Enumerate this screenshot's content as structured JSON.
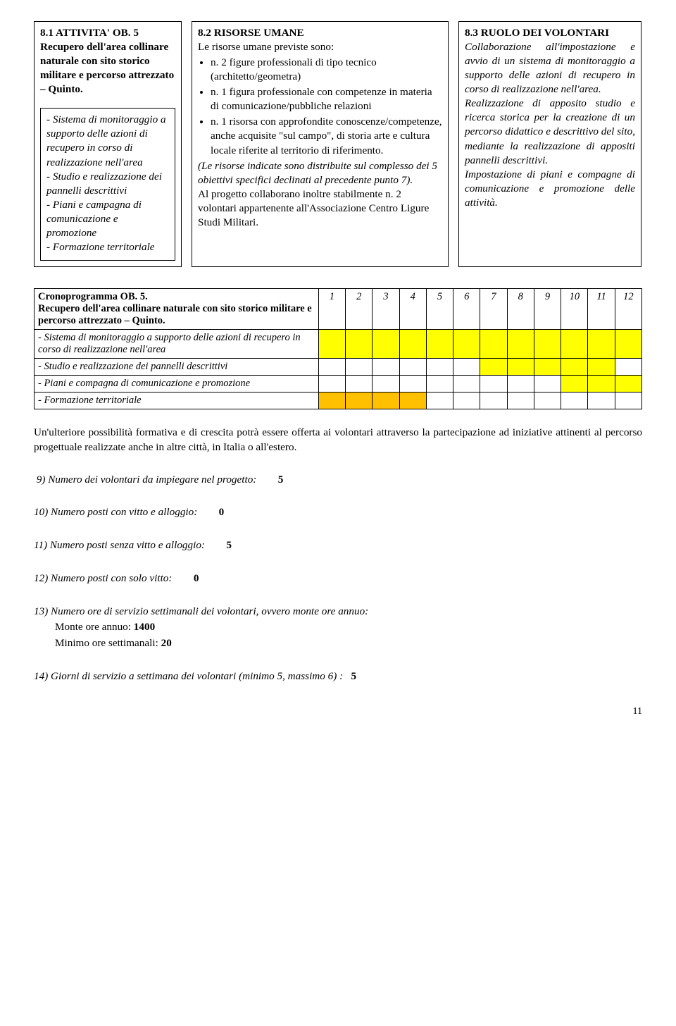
{
  "top": {
    "c1": {
      "head": "8.1 ATTIVITA' OB. 5",
      "text": "Recupero dell'area collinare naturale con sito storico militare e percorso attrezzato – Quinto.",
      "inner": "- Sistema di monitoraggio a  supporto delle  azioni di recupero in corso di realizzazione nell'area\n- Studio e realizzazione dei pannelli descrittivi\n- Piani e campagna di comunicazione e promozione\n- Formazione territoriale"
    },
    "c2": {
      "head": "8.2 RISORSE UMANE",
      "intro": "Le risorse umane previste sono:",
      "b1": "n. 2 figure professionali di tipo tecnico (architetto/geometra)",
      "b2": "n. 1 figura professionale con competenze in materia di comunicazione/pubbliche relazioni",
      "b3": "n. 1 risorsa con approfondite conoscenze/competenze, anche acquisite \"sul campo\", di storia arte e cultura locale riferite al territorio di riferimento.",
      "mid_italic": "(Le risorse indicate sono distribuite sul complesso dei 5 obiettivi specifici declinati al precedente punto 7).",
      "tail": "Al progetto collaborano inoltre stabilmente n. 2 volontari appartenente all'Associazione Centro Ligure Studi Militari."
    },
    "c3": {
      "head": "8.3 RUOLO DEI VOLONTARI",
      "text": "Collaborazione all'impostazione e avvio di un sistema di monitoraggio a supporto delle azioni di recupero in corso di realizzazione nell'area.\nRealizzazione di apposito studio e ricerca storica per la creazione di un percorso didattico e descrittivo del sito, mediante la realizzazione di appositi pannelli descrittivi.\nImpostazione di piani e compagne di comunicazione e promozione delle attività."
    }
  },
  "crono": {
    "title": "Cronoprogramma OB. 5.\nRecupero dell'area collinare naturale con sito storico militare  e percorso attrezzato – Quinto.",
    "months": [
      "1",
      "2",
      "3",
      "4",
      "5",
      "6",
      "7",
      "8",
      "9",
      "10",
      "11",
      "12"
    ],
    "rows": [
      {
        "label": "- Sistema di monitoraggio a  supporto delle  azioni di recupero in corso di realizzazione nell'area",
        "cells": [
          "y",
          "y",
          "y",
          "y",
          "y",
          "y",
          "y",
          "y",
          "y",
          "y",
          "y",
          "y"
        ]
      },
      {
        "label": "- Studio e realizzazione dei pannelli descrittivi",
        "cells": [
          "",
          "",
          "",
          "",
          "",
          "",
          "y",
          "y",
          "y",
          "y",
          "y",
          ""
        ]
      },
      {
        "label": "- Piani e compagna di comunicazione e promozione",
        "cells": [
          "",
          "",
          "",
          "",
          "",
          "",
          "",
          "",
          "",
          "y",
          "y",
          "y"
        ]
      },
      {
        "label": "- Formazione territoriale",
        "cells": [
          "o",
          "o",
          "o",
          "o",
          "",
          "",
          "",
          "",
          "",
          "",
          "",
          ""
        ]
      }
    ]
  },
  "para": "Un'ulteriore possibilità formativa e di crescita potrà essere offerta ai volontari attraverso la partecipazione ad iniziative attinenti al percorso progettuale realizzate anche in altre città, in Italia o all'estero.",
  "q9": "9)  Numero dei volontari da impiegare nel progetto:",
  "q9v": "5",
  "q10": "10)  Numero posti con vitto e alloggio:",
  "q10v": "0",
  "q11": "11)  Numero posti senza vitto e alloggio:",
  "q11v": "5",
  "q12": "12) Numero posti con solo vitto:",
  "q12v": "0",
  "q13": "13) Numero ore di servizio settimanali dei volontari, ovvero monte ore annuo:",
  "q13a": "Monte ore annuo: ",
  "q13av": "1400",
  "q13b": "Minimo ore settimanali: ",
  "q13bv": "20",
  "q14": "14) Giorni di servizio a settimana dei volontari (minimo 5, massimo 6) :",
  "q14v": "5",
  "pagenum": "11"
}
